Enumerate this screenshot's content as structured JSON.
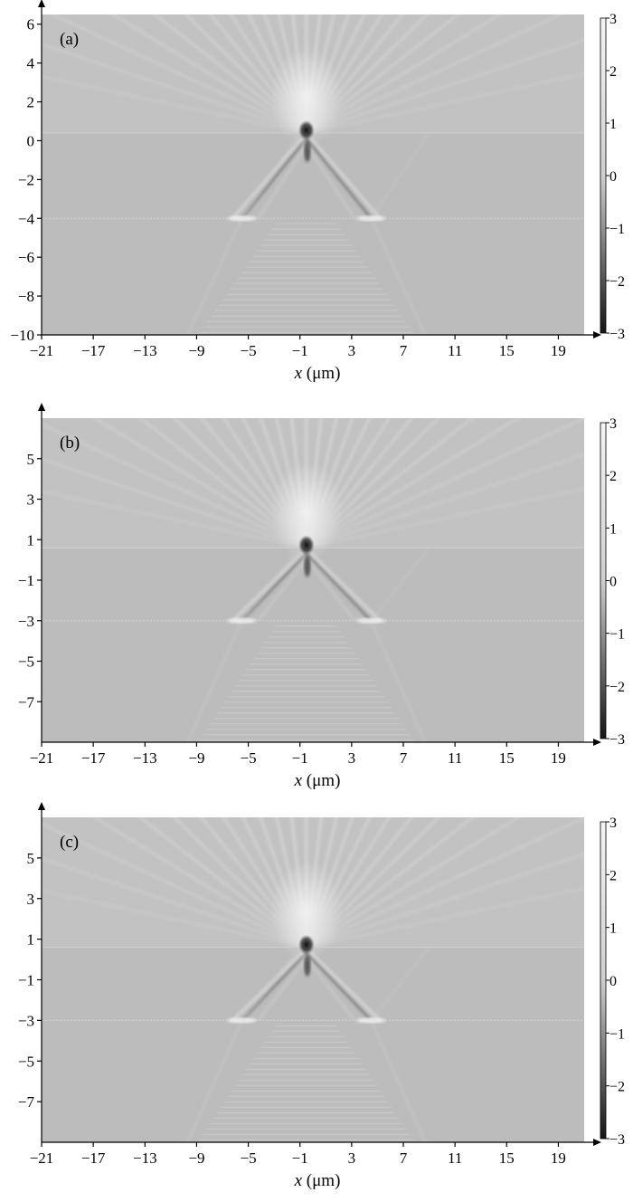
{
  "colors": {
    "field_background": "#bcbcbc",
    "axis": "#000000",
    "colorbar_high": "#f2f2f2",
    "colorbar_low": "#1a1a1a"
  },
  "chart_data": [
    {
      "type": "heatmap",
      "panel_label": "(a)",
      "xlabel_italic": "x",
      "xlabel_unit": " (μm)",
      "xlim": [
        -21,
        21
      ],
      "ylim": [
        -10,
        6.5
      ],
      "x_ticks": [
        "−21",
        "−17",
        "−13",
        "−9",
        "−5",
        "−1",
        "3",
        "7",
        "11",
        "15",
        "19"
      ],
      "x_tick_values": [
        -21,
        -17,
        -13,
        -9,
        -5,
        -1,
        3,
        7,
        11,
        15,
        19
      ],
      "y_ticks": [
        "−10",
        "−8",
        "−6",
        "−4",
        "−2",
        "0",
        "2",
        "4",
        "6"
      ],
      "y_tick_values": [
        -10,
        -8,
        -6,
        -4,
        -2,
        0,
        2,
        4,
        6
      ],
      "interfaces_y": [
        0.4,
        -4
      ],
      "source_x": -0.5,
      "colorbar": {
        "range": [
          -3,
          3
        ],
        "ticks": [
          "3",
          "2",
          "1",
          "0",
          "−1",
          "−2",
          "−3"
        ],
        "tick_values": [
          3,
          2,
          1,
          0,
          -1,
          -2,
          -3
        ]
      }
    },
    {
      "type": "heatmap",
      "panel_label": "(b)",
      "xlabel_italic": "x",
      "xlabel_unit": " (μm)",
      "xlim": [
        -21,
        21
      ],
      "ylim": [
        -9,
        7
      ],
      "x_ticks": [
        "−21",
        "−17",
        "−13",
        "−9",
        "−5",
        "−1",
        "3",
        "7",
        "11",
        "15",
        "19"
      ],
      "x_tick_values": [
        -21,
        -17,
        -13,
        -9,
        -5,
        -1,
        3,
        7,
        11,
        15,
        19
      ],
      "y_ticks": [
        "5",
        "3",
        "1",
        "−1",
        "−3",
        "−5",
        "−7"
      ],
      "y_tick_values": [
        5,
        3,
        1,
        -1,
        -3,
        -5,
        -7
      ],
      "interfaces_y": [
        0.6,
        -3
      ],
      "source_x": -0.5,
      "colorbar": {
        "range": [
          -3,
          3
        ],
        "ticks": [
          "3",
          "2",
          "1",
          "0",
          "−1",
          "−2",
          "−3"
        ],
        "tick_values": [
          3,
          2,
          1,
          0,
          -1,
          -2,
          -3
        ]
      }
    },
    {
      "type": "heatmap",
      "panel_label": "(c)",
      "xlabel_italic": "x",
      "xlabel_unit": " (μm)",
      "xlim": [
        -21,
        21
      ],
      "ylim": [
        -9,
        7
      ],
      "x_ticks": [
        "−21",
        "−17",
        "−13",
        "−9",
        "−5",
        "−1",
        "3",
        "7",
        "11",
        "15",
        "19"
      ],
      "x_tick_values": [
        -21,
        -17,
        -13,
        -9,
        -5,
        -1,
        3,
        7,
        11,
        15,
        19
      ],
      "y_ticks": [
        "5",
        "3",
        "1",
        "−1",
        "−3",
        "−5",
        "−7"
      ],
      "y_tick_values": [
        5,
        3,
        1,
        -1,
        -3,
        -5,
        -7
      ],
      "interfaces_y": [
        0.6,
        -3
      ],
      "source_x": -0.5,
      "colorbar": {
        "range": [
          -3,
          3
        ],
        "ticks": [
          "3",
          "2",
          "1",
          "0",
          "−1",
          "−2",
          "−3"
        ],
        "tick_values": [
          3,
          2,
          1,
          0,
          -1,
          -2,
          -3
        ]
      }
    }
  ]
}
